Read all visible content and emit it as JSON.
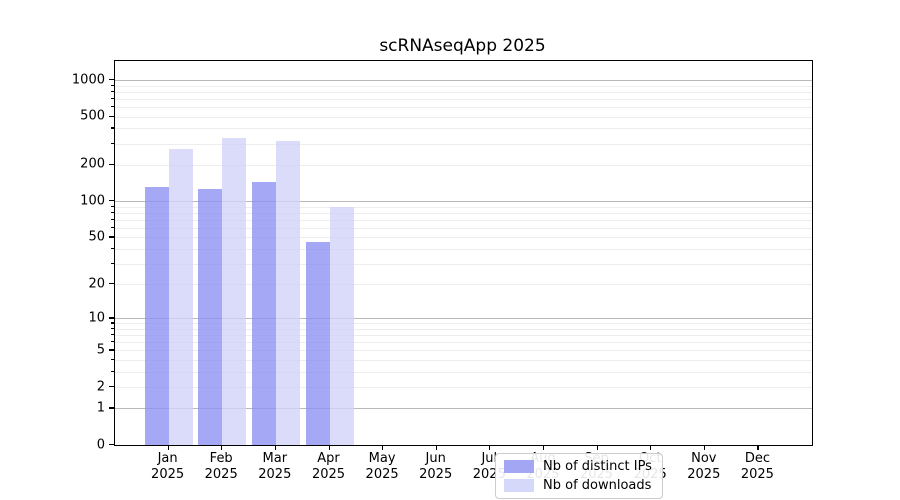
{
  "title": "scRNAseqApp 2025",
  "colors": {
    "bar_distinct_ips": "rgba(140,144,242,0.78)",
    "bar_downloads": "rgba(208,210,249,0.78)",
    "legend_swatch_distinct_ips": "#a3a6f2",
    "legend_swatch_downloads": "#d5d8f9",
    "grid_major": "#b9b9b9",
    "grid_minor": "#ededed",
    "axis": "#000000"
  },
  "chart_data": {
    "type": "bar",
    "title": "scRNAseqApp 2025",
    "scale": "log1p",
    "categories": [
      "Jan",
      "Feb",
      "Mar",
      "Apr",
      "May",
      "Jun",
      "Jul",
      "Aug",
      "Sep",
      "Oct",
      "Nov",
      "Dec"
    ],
    "year": "2025",
    "series": [
      {
        "name": "Nb of distinct IPs",
        "values": [
          131,
          127,
          144,
          46,
          0,
          0,
          0,
          0,
          0,
          0,
          0,
          0
        ]
      },
      {
        "name": "Nb of downloads",
        "values": [
          271,
          335,
          315,
          89,
          0,
          0,
          0,
          0,
          0,
          0,
          0,
          0
        ]
      }
    ],
    "xlabel": "",
    "ylabel": "",
    "yticks": [
      0,
      1,
      2,
      5,
      10,
      20,
      50,
      100,
      200,
      500,
      1000
    ],
    "ylim": [
      0,
      1437
    ],
    "grid": true,
    "legend_position": "lower center"
  }
}
